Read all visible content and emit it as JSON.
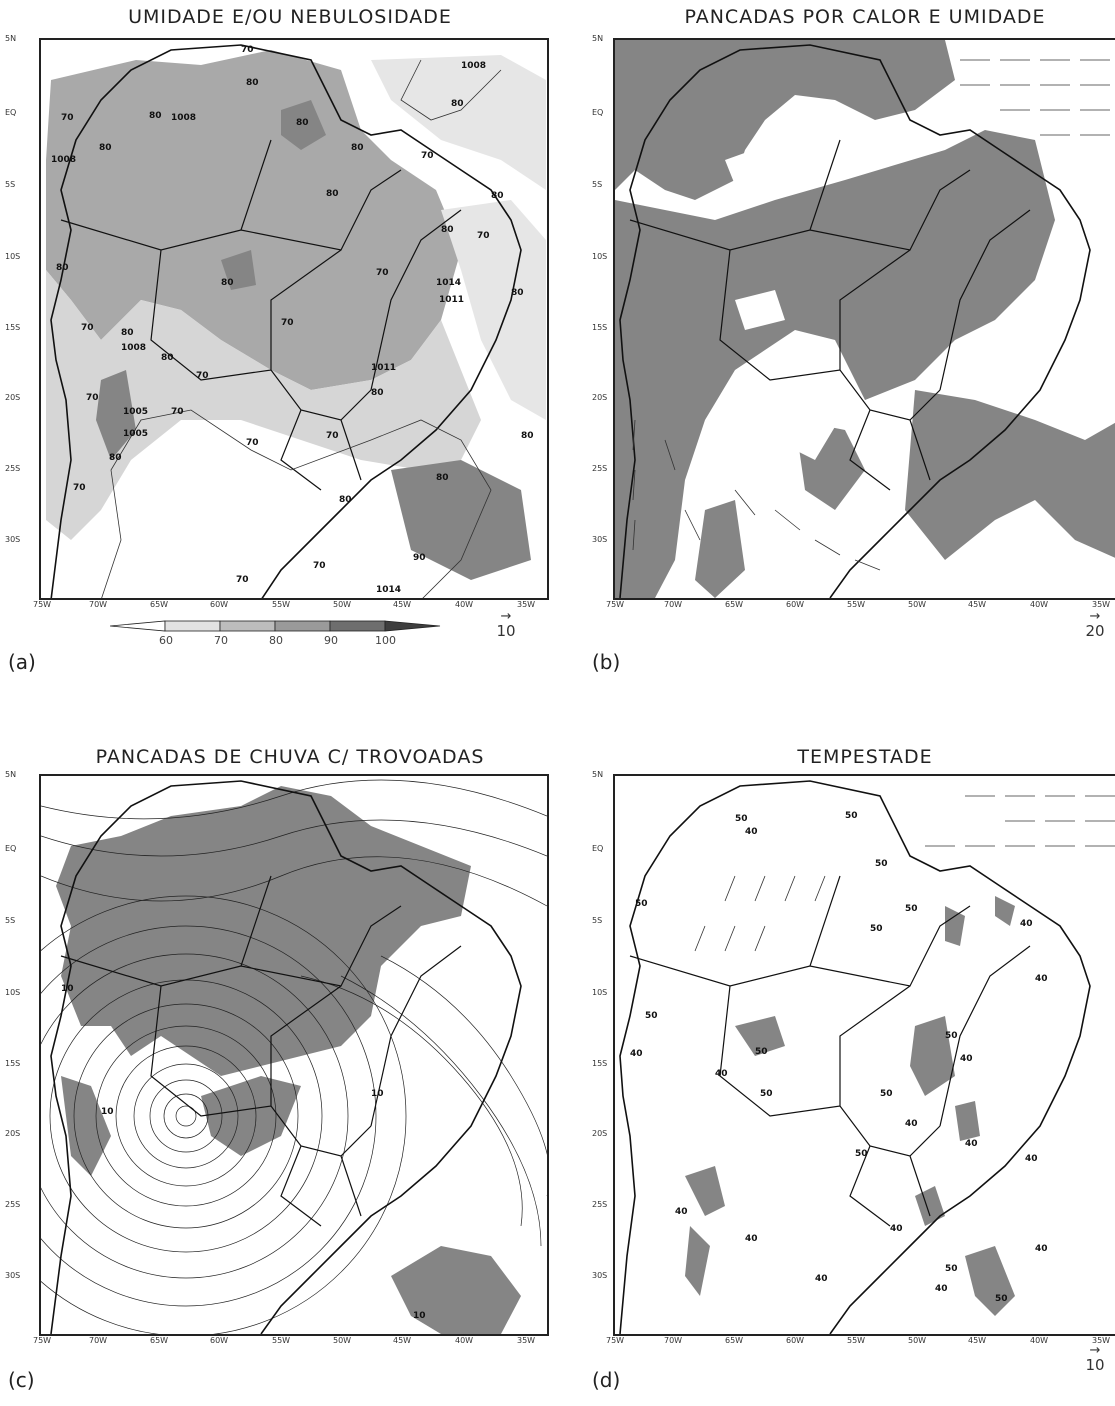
{
  "panels": [
    {
      "id": "a",
      "title": "UMIDADE E/OU NEBULOSIDADE",
      "letter": "(a)",
      "vector_ref": "10",
      "contour_labels": [
        "70",
        "80",
        "1008",
        "80",
        "1008",
        "70",
        "80",
        "80",
        "80",
        "70",
        "80",
        "1008",
        "80",
        "80",
        "80",
        "80",
        "70",
        "70",
        "80",
        "70",
        "80",
        "80",
        "70",
        "1011",
        "80",
        "70",
        "80",
        "1008",
        "70",
        "80",
        "70",
        "1005",
        "70",
        "1005",
        "80",
        "70",
        "70",
        "80",
        "70",
        "80",
        "1011",
        "70",
        "1014",
        "90",
        "1014"
      ]
    },
    {
      "id": "b",
      "title": "PANCADAS POR CALOR E UMIDADE",
      "letter": "(b)",
      "vector_ref": "20"
    },
    {
      "id": "c",
      "title": "PANCADAS DE CHUVA C/ TROVOADAS",
      "letter": "(c)",
      "contour_labels": [
        "10",
        "10",
        "10",
        "10"
      ]
    },
    {
      "id": "d",
      "title": "TEMPESTADE",
      "letter": "(d)",
      "vector_ref": "10",
      "contour_labels": [
        "40",
        "50",
        "50",
        "50",
        "50",
        "40",
        "50",
        "50",
        "40",
        "50",
        "50",
        "50",
        "40",
        "50",
        "50",
        "40",
        "40",
        "40",
        "40",
        "50",
        "40",
        "40",
        "40",
        "40",
        "50",
        "40",
        "40",
        "40",
        "40",
        "50"
      ]
    }
  ],
  "axes": {
    "lat_labels": [
      "5N",
      "EQ",
      "5S",
      "10S",
      "15S",
      "20S",
      "25S",
      "30S"
    ],
    "lon_labels": [
      "75W",
      "70W",
      "65W",
      "60W",
      "55W",
      "50W",
      "45W",
      "40W",
      "35W"
    ]
  },
  "colorbar": {
    "ticks": [
      "60",
      "70",
      "80",
      "90",
      "100"
    ],
    "colors": [
      "#ffffff",
      "#e2e2e2",
      "#bdbdbd",
      "#9a9a9a",
      "#6e6e6e",
      "#3e3e3e"
    ]
  },
  "colors": {
    "shade_dark": "#858585",
    "shade_mid": "#a9a9a9",
    "shade_light": "#d6d6d6",
    "line": "#111111"
  }
}
